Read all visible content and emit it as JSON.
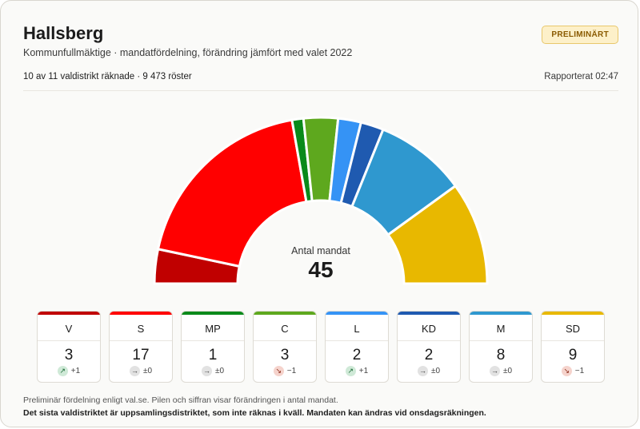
{
  "header": {
    "title": "Hallsberg",
    "subtitle": "Kommunfullmäktige · mandatfördelning, förändring jämfört med valet 2022",
    "badge": "PRELIMINÄRT"
  },
  "status": {
    "counted": "10 av 11 valdistrikt räknade · 9 473 röster",
    "reported": "Rapporterat 02:47"
  },
  "center": {
    "label": "Antal mandat",
    "total": "45"
  },
  "chart_data": {
    "type": "hemicycle",
    "total_seats": 45,
    "categories": [
      "V",
      "S",
      "MP",
      "C",
      "L",
      "KD",
      "M",
      "SD"
    ],
    "values": [
      3,
      17,
      1,
      3,
      2,
      2,
      8,
      9
    ],
    "change": [
      1,
      0,
      0,
      -1,
      1,
      0,
      0,
      -1
    ],
    "colors": [
      "#c00000",
      "#ff0000",
      "#0a8a1a",
      "#5ea81e",
      "#3593f5",
      "#1f5ab0",
      "#2f98cf",
      "#e8b800"
    ]
  },
  "tiles": [
    {
      "party": "V",
      "seats": "3",
      "change_icon": "↗",
      "change_text": "+1",
      "trend": "up",
      "color": "#c00000"
    },
    {
      "party": "S",
      "seats": "17",
      "change_icon": "→",
      "change_text": "±0",
      "trend": "flat",
      "color": "#ff0000"
    },
    {
      "party": "MP",
      "seats": "1",
      "change_icon": "→",
      "change_text": "±0",
      "trend": "flat",
      "color": "#0a8a1a"
    },
    {
      "party": "C",
      "seats": "3",
      "change_icon": "↘",
      "change_text": "−1",
      "trend": "down",
      "color": "#5ea81e"
    },
    {
      "party": "L",
      "seats": "2",
      "change_icon": "↗",
      "change_text": "+1",
      "trend": "up",
      "color": "#3593f5"
    },
    {
      "party": "KD",
      "seats": "2",
      "change_icon": "→",
      "change_text": "±0",
      "trend": "flat",
      "color": "#1f5ab0"
    },
    {
      "party": "M",
      "seats": "8",
      "change_icon": "→",
      "change_text": "±0",
      "trend": "flat",
      "color": "#2f98cf"
    },
    {
      "party": "SD",
      "seats": "9",
      "change_icon": "↘",
      "change_text": "−1",
      "trend": "down",
      "color": "#e8b800"
    }
  ],
  "footer": {
    "note": "Preliminär fördelning enligt val.se. Pilen och siffran visar förändringen i antal mandat.",
    "warning": "Det sista valdistriktet är uppsamlingsdistriktet, som inte räknas i kväll. Mandaten kan ändras vid onsdagsräkningen."
  }
}
